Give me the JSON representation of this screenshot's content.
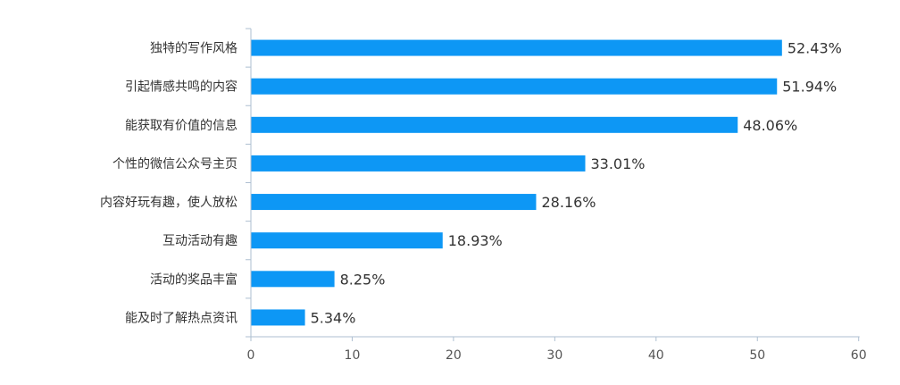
{
  "chart_data": {
    "type": "bar",
    "orientation": "horizontal",
    "categories": [
      "独特的写作风格",
      "引起情感共鸣的内容",
      "能获取有价值的信息",
      "个性的微信公众号主页",
      "内容好玩有趣，使人放松",
      "互动活动有趣",
      "活动的奖品丰富",
      "能及时了解热点资讯"
    ],
    "values": [
      52.43,
      51.94,
      48.06,
      33.01,
      28.16,
      18.93,
      8.25,
      5.34
    ],
    "value_labels": [
      "52.43%",
      "51.94%",
      "48.06%",
      "33.01%",
      "28.16%",
      "18.93%",
      "8.25%",
      "5.34%"
    ],
    "x_ticks": [
      0,
      10,
      20,
      30,
      40,
      50,
      60
    ],
    "xlim": [
      0,
      60
    ],
    "grid": false,
    "legend": "none",
    "colors": {
      "bar": "#0d97f5",
      "axis": "#aebfd1",
      "text": "#333333",
      "tick_text": "#555555"
    }
  }
}
